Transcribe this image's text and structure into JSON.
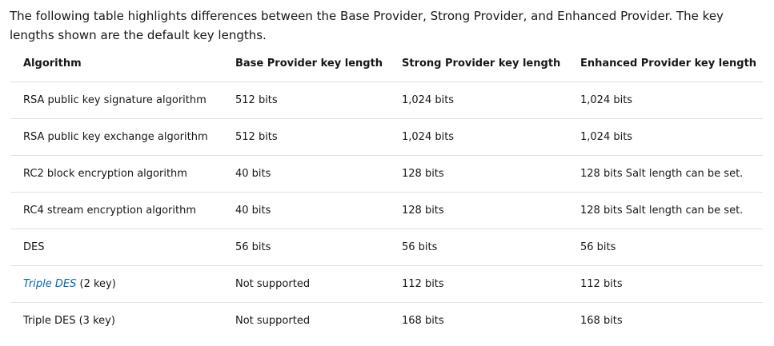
{
  "intro": "The following table highlights differences between the Base Provider, Strong Provider, and Enhanced Provider. The key lengths shown are the default key lengths.",
  "table": {
    "headers": [
      "Algorithm",
      "Base Provider key length",
      "Strong Provider key length",
      "Enhanced Provider key length"
    ],
    "rows": [
      {
        "algorithm": "RSA public key signature algorithm",
        "base": "512 bits",
        "strong": "1,024 bits",
        "enhanced": "1,024 bits"
      },
      {
        "algorithm": "RSA public key exchange algorithm",
        "base": "512 bits",
        "strong": "1,024 bits",
        "enhanced": "1,024 bits"
      },
      {
        "algorithm": "RC2 block encryption algorithm",
        "base": "40 bits",
        "strong": "128 bits",
        "enhanced": "128 bits Salt length can be set."
      },
      {
        "algorithm": "RC4 stream encryption algorithm",
        "base": "40 bits",
        "strong": "128 bits",
        "enhanced": "128 bits Salt length can be set."
      },
      {
        "algorithm": "DES",
        "base": "56 bits",
        "strong": "56 bits",
        "enhanced": "56 bits"
      },
      {
        "algorithm_link": "Triple DES",
        "algorithm_suffix": " (2 key)",
        "base": "Not supported",
        "strong": "112 bits",
        "enhanced": "112 bits"
      },
      {
        "algorithm": "Triple DES (3 key)",
        "base": "Not supported",
        "strong": "168 bits",
        "enhanced": "168 bits"
      }
    ]
  },
  "colors": {
    "link": "#0065b3",
    "text": "#171717",
    "divider": "#e1e1e1"
  }
}
